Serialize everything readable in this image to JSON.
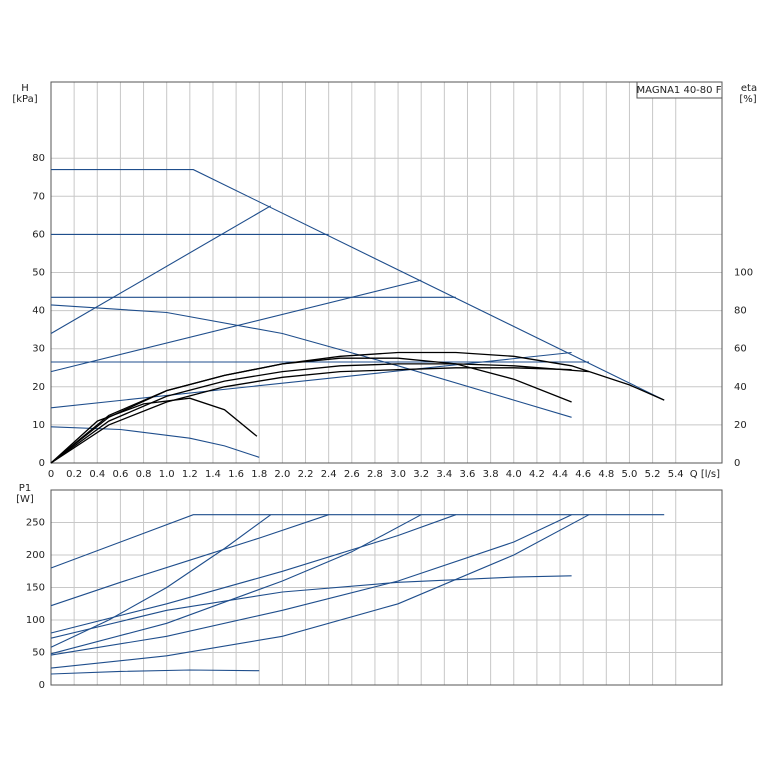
{
  "chart_data": [
    {
      "type": "line",
      "model_label": "MAGNA1 40-80 F",
      "y_label": "H",
      "y_unit": "[kPa]",
      "y2_label": "eta",
      "y2_unit": "[%]",
      "x_label": "Q [l/s]",
      "xlim": [
        0,
        5.8
      ],
      "xticks": [
        0,
        0.2,
        0.4,
        0.6,
        0.8,
        {
          "value": 1,
          "label": "1.0"
        },
        1.2,
        1.4,
        1.6,
        1.8,
        {
          "value": 2,
          "label": "2.0"
        },
        2.2,
        2.4,
        2.6,
        2.8,
        {
          "value": 3,
          "label": "3.0"
        },
        3.2,
        3.4,
        3.6,
        3.8,
        {
          "value": 4,
          "label": "4.0"
        },
        4.2,
        4.4,
        4.6,
        4.8,
        {
          "value": 5,
          "label": "5.0"
        },
        5.2,
        5.4
      ],
      "ylim": [
        0,
        100
      ],
      "yticks": [
        0,
        10,
        20,
        30,
        40,
        50,
        60,
        70,
        80
      ],
      "y2lim": [
        0,
        200
      ],
      "y2ticks": [
        0,
        20,
        40,
        60,
        80,
        100
      ],
      "grid": true,
      "series": [
        {
          "color": "#1f4e8c",
          "x": [
            0,
            1.23,
            5.3
          ],
          "values": [
            77,
            77,
            16.5
          ]
        },
        {
          "color": "#1f4e8c",
          "x": [
            0,
            2.4
          ],
          "values": [
            60,
            60
          ]
        },
        {
          "color": "#1f4e8c",
          "x": [
            0,
            3.5
          ],
          "values": [
            43.5,
            43.5
          ]
        },
        {
          "color": "#1f4e8c",
          "x": [
            0,
            4.65
          ],
          "values": [
            26.5,
            26.5
          ]
        },
        {
          "color": "#1f4e8c",
          "x": [
            0,
            1.9
          ],
          "values": [
            34,
            67.5
          ]
        },
        {
          "color": "#1f4e8c",
          "x": [
            0,
            3.2
          ],
          "values": [
            24,
            48
          ]
        },
        {
          "color": "#1f4e8c",
          "x": [
            0,
            4.5
          ],
          "values": [
            14.5,
            29
          ]
        },
        {
          "color": "#1f4e8c",
          "x": [
            0,
            1,
            2,
            3,
            4,
            4.5
          ],
          "values": [
            41.5,
            39.5,
            34,
            25.5,
            16.5,
            12
          ]
        },
        {
          "color": "#1f4e8c",
          "x": [
            0,
            0.6,
            1.2,
            1.5,
            1.8
          ],
          "values": [
            9.5,
            8.8,
            6.5,
            4.5,
            1.5
          ]
        },
        {
          "color": "#000000",
          "axis": "y2",
          "x": [
            0,
            0.4,
            0.8,
            1.2,
            1.5,
            1.78
          ],
          "values": [
            0,
            22,
            31,
            34,
            28,
            14
          ]
        },
        {
          "color": "#000000",
          "axis": "y2",
          "x": [
            0,
            0.5,
            1,
            1.5,
            2,
            2.5,
            3,
            3.5,
            4,
            4.5
          ],
          "values": [
            0,
            25,
            38,
            46,
            52,
            55,
            55,
            52,
            44,
            32
          ]
        },
        {
          "color": "#000000",
          "axis": "y2",
          "x": [
            0,
            0.5,
            1,
            1.5,
            2,
            2.5,
            3,
            3.5,
            4,
            4.5,
            5,
            5.3
          ],
          "values": [
            0,
            24,
            38,
            46,
            52,
            56,
            58,
            58,
            56,
            51,
            41,
            33
          ]
        },
        {
          "color": "#000000",
          "axis": "y2",
          "x": [
            0,
            0.5,
            1,
            1.5,
            2,
            2.5,
            3,
            3.5,
            4,
            4.65
          ],
          "values": [
            0,
            22,
            35,
            43,
            48,
            51,
            52,
            52,
            51,
            48
          ]
        },
        {
          "color": "#000000",
          "axis": "y2",
          "x": [
            0,
            0.5,
            1,
            1.5,
            2,
            2.5,
            3,
            3.5,
            4,
            4.5
          ],
          "values": [
            0,
            20,
            32,
            40,
            45,
            48,
            49,
            50,
            50,
            49
          ]
        }
      ]
    },
    {
      "type": "line",
      "y_label": "P1",
      "y_unit": "[W]",
      "xlim": [
        0,
        5.8
      ],
      "ylim": [
        0,
        300
      ],
      "yticks": [
        0,
        50,
        100,
        150,
        200,
        250
      ],
      "grid": true,
      "series": [
        {
          "color": "#1f4e8c",
          "x": [
            0,
            1.23,
            5.3
          ],
          "values": [
            180,
            262,
            262
          ]
        },
        {
          "color": "#1f4e8c",
          "x": [
            0,
            0.6,
            1.2,
            1.8,
            2.4
          ],
          "values": [
            122,
            158,
            192,
            226,
            262
          ]
        },
        {
          "color": "#1f4e8c",
          "x": [
            0,
            0.5,
            1,
            1.5,
            1.9
          ],
          "values": [
            58,
            100,
            150,
            210,
            262
          ]
        },
        {
          "color": "#1f4e8c",
          "x": [
            0,
            1,
            2,
            3,
            3.5
          ],
          "values": [
            80,
            125,
            175,
            230,
            262
          ]
        },
        {
          "color": "#1f4e8c",
          "x": [
            0,
            1,
            2,
            2.6,
            3.2
          ],
          "values": [
            48,
            95,
            160,
            205,
            262
          ]
        },
        {
          "color": "#1f4e8c",
          "x": [
            0,
            1,
            2,
            3,
            4,
            4.5
          ],
          "values": [
            46,
            75,
            115,
            160,
            220,
            262
          ]
        },
        {
          "color": "#1f4e8c",
          "x": [
            0,
            1,
            2,
            3,
            4,
            4.65
          ],
          "values": [
            26,
            45,
            75,
            125,
            200,
            262
          ]
        },
        {
          "color": "#1f4e8c",
          "x": [
            0,
            1,
            2,
            3,
            4,
            4.5
          ],
          "values": [
            72,
            115,
            143,
            158,
            166,
            168
          ]
        },
        {
          "color": "#1f4e8c",
          "x": [
            0,
            0.6,
            1.2,
            1.8
          ],
          "values": [
            17,
            21,
            23,
            22
          ]
        }
      ]
    }
  ]
}
